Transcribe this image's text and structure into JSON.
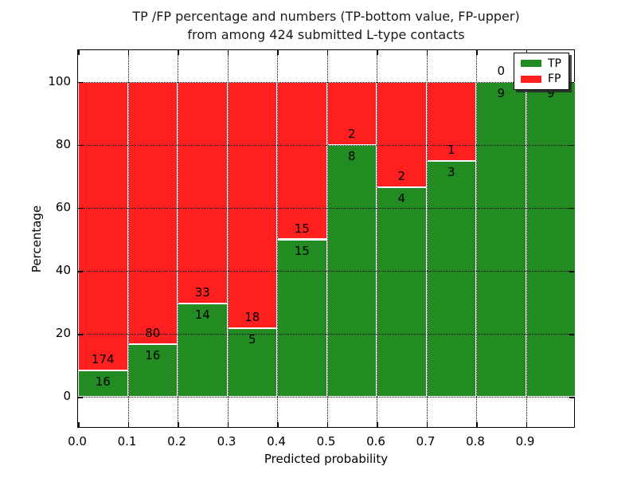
{
  "figure": {
    "title_line1": "TP /FP percentage and numbers (TP-bottom value, FP-upper)",
    "title_line2": "from among 424 submitted L-type contacts"
  },
  "chart_data": {
    "type": "bar",
    "variant": "stacked-percentage-histogram",
    "title": "TP /FP percentage and numbers (TP-bottom value, FP-upper) from among 424 submitted L-type contacts",
    "xlabel": "Predicted probability",
    "ylabel": "Percentage",
    "total_contacts": 424,
    "bin_width": 0.1,
    "bin_starts": [
      0.0,
      0.1,
      0.2,
      0.3,
      0.4,
      0.5,
      0.6,
      0.7,
      0.8,
      0.9
    ],
    "series": [
      {
        "name": "TP",
        "color": "#228B22",
        "counts": [
          16,
          16,
          14,
          5,
          15,
          8,
          4,
          3,
          9,
          9
        ]
      },
      {
        "name": "FP",
        "color": "#FF1F1F",
        "counts": [
          174,
          80,
          33,
          18,
          15,
          2,
          2,
          1,
          0,
          0
        ]
      }
    ],
    "tp_percent": [
      8.42,
      16.67,
      29.79,
      21.74,
      50.0,
      80.0,
      66.67,
      75.0,
      100.0,
      100.0
    ],
    "xlim": [
      0.0,
      1.0
    ],
    "ylim": [
      -10,
      110
    ],
    "xtick_labels": [
      "0.0",
      "0.1",
      "0.2",
      "0.3",
      "0.4",
      "0.5",
      "0.6",
      "0.7",
      "0.8",
      "0.9"
    ],
    "ytick_values": [
      0,
      20,
      40,
      60,
      80,
      100
    ],
    "ytick_labels": [
      "0",
      "20",
      "40",
      "60",
      "80",
      "100"
    ],
    "grid": "dotted, drawn above bars",
    "legend": {
      "position": "upper right",
      "entries": [
        "TP",
        "FP"
      ]
    }
  }
}
